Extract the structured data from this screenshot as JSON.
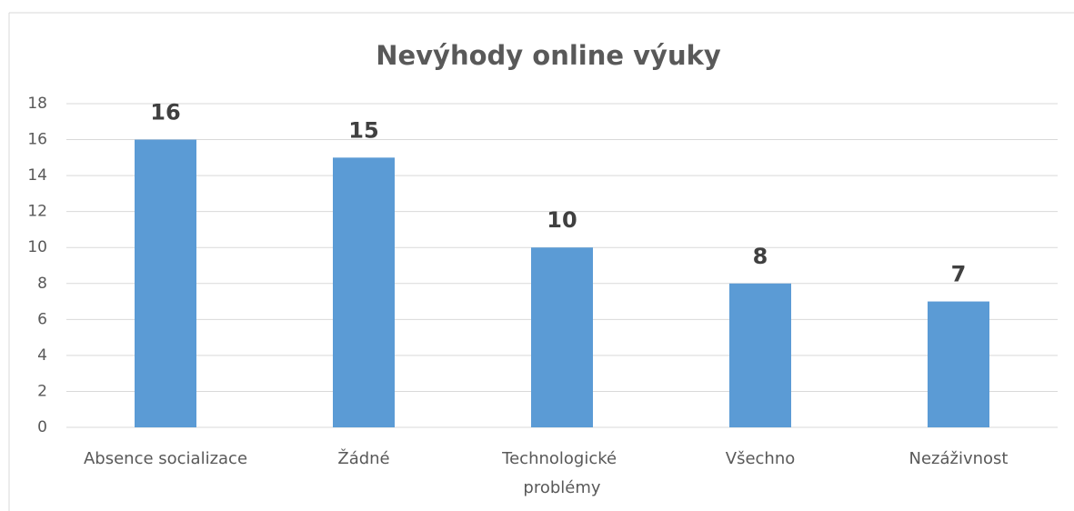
{
  "chart_data": {
    "type": "bar",
    "title": "Nevýhody online výuky",
    "categories": [
      "Absence socializace",
      "Žádné",
      "Technologické problémy",
      "Všechno",
      "Nezáživnost"
    ],
    "values": [
      16,
      15,
      10,
      8,
      7
    ],
    "color": "#5b9bd5",
    "ylim": [
      0,
      18
    ],
    "yticks": [
      0,
      2,
      4,
      6,
      8,
      10,
      12,
      14,
      16,
      18
    ],
    "grid": true
  }
}
